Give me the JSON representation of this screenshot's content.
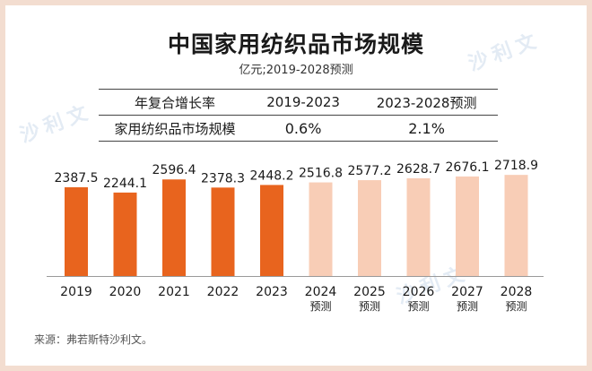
{
  "title": "中国家用纺织品市场规模",
  "unit": "亿元;2019-2028预测",
  "cagr_table": {
    "header": [
      "年复合增长率",
      "2019-2023",
      "2023-2028预测"
    ],
    "row": [
      "家用纺织品市场规模",
      "0.6%",
      "2.1%"
    ]
  },
  "chart_data": {
    "type": "bar",
    "title": "中国家用纺织品市场规模",
    "ylabel": "亿元",
    "categories": [
      "2019",
      "2020",
      "2021",
      "2022",
      "2023",
      "2024",
      "2025",
      "2026",
      "2027",
      "2028"
    ],
    "forecast_note": "预测",
    "forecast_from_index": 5,
    "values": [
      2387.5,
      2244.1,
      2596.4,
      2378.3,
      2448.2,
      2516.8,
      2577.2,
      2628.7,
      2676.1,
      2718.9
    ],
    "value_labels": [
      "2387.5",
      "2244.1",
      "2596.4",
      "2378.3",
      "2448.2",
      "2516.8",
      "2577.2",
      "2628.7",
      "2676.1",
      "2718.9"
    ],
    "colors": {
      "actual": "#e8641e",
      "forecast": "#f8cdb6"
    }
  },
  "watermark": "沙利文",
  "source": "来源：弗若斯特沙利文。"
}
